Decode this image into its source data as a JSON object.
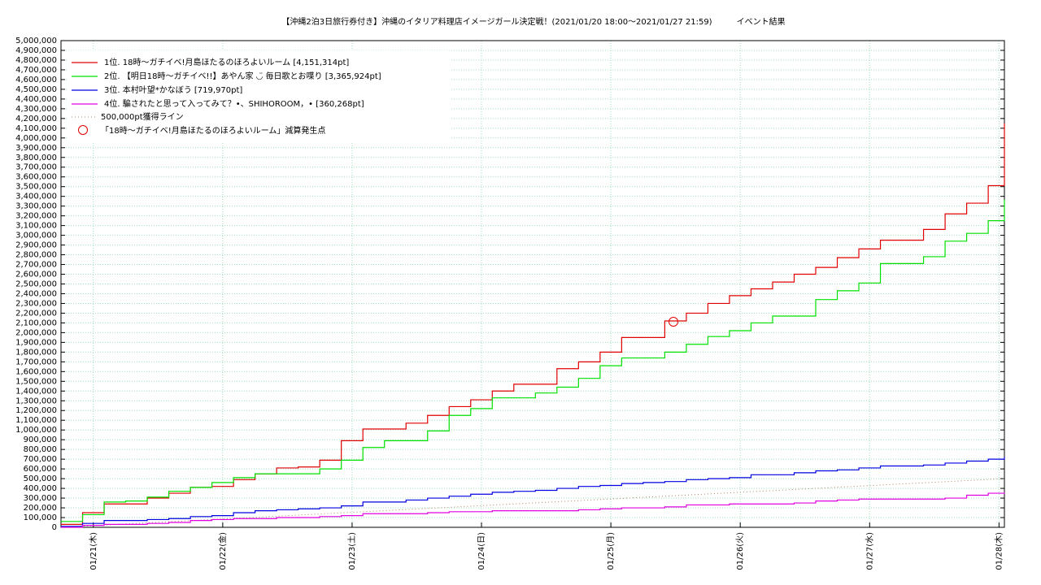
{
  "chart_data": {
    "type": "step",
    "title": "【沖縄2泊3日旅行券付き】沖縄のイタリア料理店イメージガール決定戦！(2021/01/20 18:00〜2021/01/27 21:59)　　　イベント結果",
    "x": [
      18,
      22,
      26,
      30,
      34,
      38,
      42,
      46,
      50,
      54,
      58,
      62,
      66,
      70,
      74,
      78,
      82,
      86,
      90,
      94,
      98,
      102,
      106,
      110,
      114,
      118,
      122,
      126,
      130,
      134,
      138,
      142,
      146,
      150,
      154,
      158,
      162,
      166,
      170,
      174,
      178,
      182,
      186,
      190,
      193
    ],
    "series": [
      {
        "name": "1位. 18時〜ガチイベ!月島ほたるのほろよいルーム [4,151,314pt]",
        "color": "#e00000",
        "values": [
          30000,
          150000,
          240000,
          240000,
          300000,
          350000,
          410000,
          420000,
          490000,
          550000,
          610000,
          620000,
          690000,
          890000,
          1010000,
          1010000,
          1070000,
          1150000,
          1240000,
          1310000,
          1400000,
          1470000,
          1470000,
          1630000,
          1700000,
          1800000,
          1950000,
          1950000,
          2120000,
          2200000,
          2300000,
          2380000,
          2450000,
          2520000,
          2600000,
          2670000,
          2770000,
          2860000,
          2950000,
          2950000,
          3060000,
          3220000,
          3330000,
          3510000,
          4151314
        ]
      },
      {
        "name": "2位. 【明日18時〜ガチイベ!!】あやん家 ◡̈ 毎日歌とお喋り [3,365,924pt]",
        "color": "#00e000",
        "values": [
          60000,
          130000,
          260000,
          270000,
          310000,
          370000,
          410000,
          460000,
          510000,
          550000,
          550000,
          550000,
          600000,
          690000,
          820000,
          890000,
          890000,
          990000,
          1150000,
          1220000,
          1330000,
          1330000,
          1380000,
          1440000,
          1530000,
          1660000,
          1740000,
          1740000,
          1800000,
          1880000,
          1960000,
          2020000,
          2100000,
          2170000,
          2170000,
          2340000,
          2430000,
          2510000,
          2710000,
          2710000,
          2780000,
          2940000,
          3020000,
          3150000,
          3365924
        ]
      },
      {
        "name": "3位. 本村叶望*かなぼう [719,970pt]",
        "color": "#0000e0",
        "values": [
          10000,
          40000,
          70000,
          70000,
          80000,
          90000,
          110000,
          120000,
          150000,
          170000,
          180000,
          190000,
          200000,
          220000,
          260000,
          260000,
          280000,
          300000,
          320000,
          340000,
          360000,
          370000,
          380000,
          400000,
          420000,
          430000,
          450000,
          460000,
          470000,
          490000,
          500000,
          510000,
          540000,
          540000,
          560000,
          580000,
          590000,
          610000,
          630000,
          630000,
          640000,
          660000,
          680000,
          700000,
          719970
        ]
      },
      {
        "name": "4位. 騙されたと思って入ってみて？•、SHIHOROOM，• [360,268pt]",
        "color": "#e000e0",
        "values": [
          0,
          20000,
          30000,
          30000,
          40000,
          50000,
          70000,
          80000,
          90000,
          90000,
          100000,
          100000,
          110000,
          120000,
          140000,
          140000,
          140000,
          150000,
          160000,
          160000,
          170000,
          170000,
          170000,
          170000,
          180000,
          190000,
          200000,
          200000,
          210000,
          230000,
          230000,
          240000,
          240000,
          240000,
          250000,
          270000,
          280000,
          290000,
          290000,
          290000,
          290000,
          300000,
          330000,
          350000,
          360268
        ]
      }
    ],
    "reference_line": {
      "name": "500,000pt獲得ライン",
      "color": "#b08060",
      "x": [
        18,
        193
      ],
      "values": [
        0,
        500000
      ]
    },
    "markers": {
      "name": "「18時〜ガチイベ!月島ほたるのほろよいルーム」減算発生点",
      "color": "#e00000",
      "x": [
        131.6
      ],
      "values": [
        2112000
      ]
    },
    "xlim": [
      18,
      193
    ],
    "xticks": [
      {
        "value": 24,
        "label": "01/21(木)"
      },
      {
        "value": 48,
        "label": "01/22(金)"
      },
      {
        "value": 72,
        "label": "01/23(土)"
      },
      {
        "value": 96,
        "label": "01/24(日)"
      },
      {
        "value": 120,
        "label": "01/25(月)"
      },
      {
        "value": 144,
        "label": "01/26(火)"
      },
      {
        "value": 168,
        "label": "01/27(水)"
      },
      {
        "value": 192,
        "label": "01/28(木)"
      }
    ],
    "ylim": [
      0,
      5000000
    ],
    "yticks": [
      0,
      {
        "value": 100000,
        "label": "100,000"
      },
      {
        "value": 200000,
        "label": "200,000"
      },
      {
        "value": 300000,
        "label": "300,000"
      },
      {
        "value": 400000,
        "label": "400,000"
      },
      {
        "value": 500000,
        "label": "500,000"
      },
      {
        "value": 600000,
        "label": "600,000"
      },
      {
        "value": 700000,
        "label": "700,000"
      },
      {
        "value": 800000,
        "label": "800,000"
      },
      {
        "value": 900000,
        "label": "900,000"
      },
      {
        "value": 1000000,
        "label": "1,000,000"
      },
      {
        "value": 1100000,
        "label": "1,100,000"
      },
      {
        "value": 1200000,
        "label": "1,200,000"
      },
      {
        "value": 1300000,
        "label": "1,300,000"
      },
      {
        "value": 1400000,
        "label": "1,400,000"
      },
      {
        "value": 1500000,
        "label": "1,500,000"
      },
      {
        "value": 1600000,
        "label": "1,600,000"
      },
      {
        "value": 1700000,
        "label": "1,700,000"
      },
      {
        "value": 1800000,
        "label": "1,800,000"
      },
      {
        "value": 1900000,
        "label": "1,900,000"
      },
      {
        "value": 2000000,
        "label": "2,000,000"
      },
      {
        "value": 2100000,
        "label": "2,100,000"
      },
      {
        "value": 2200000,
        "label": "2,200,000"
      },
      {
        "value": 2300000,
        "label": "2,300,000"
      },
      {
        "value": 2400000,
        "label": "2,400,000"
      },
      {
        "value": 2500000,
        "label": "2,500,000"
      },
      {
        "value": 2600000,
        "label": "2,600,000"
      },
      {
        "value": 2700000,
        "label": "2,700,000"
      },
      {
        "value": 2800000,
        "label": "2,800,000"
      },
      {
        "value": 2900000,
        "label": "2,900,000"
      },
      {
        "value": 3000000,
        "label": "3,000,000"
      },
      {
        "value": 3100000,
        "label": "3,100,000"
      },
      {
        "value": 3200000,
        "label": "3,200,000"
      },
      {
        "value": 3300000,
        "label": "3,300,000"
      },
      {
        "value": 3400000,
        "label": "3,400,000"
      },
      {
        "value": 3500000,
        "label": "3,500,000"
      },
      {
        "value": 3600000,
        "label": "3,600,000"
      },
      {
        "value": 3700000,
        "label": "3,700,000"
      },
      {
        "value": 3800000,
        "label": "3,800,000"
      },
      {
        "value": 3900000,
        "label": "3,900,000"
      },
      {
        "value": 4000000,
        "label": "4,000,000"
      },
      {
        "value": 4100000,
        "label": "4,100,000"
      },
      {
        "value": 4200000,
        "label": "4,200,000"
      },
      {
        "value": 4300000,
        "label": "4,300,000"
      },
      {
        "value": 4400000,
        "label": "4,400,000"
      },
      {
        "value": 4500000,
        "label": "4,500,000"
      },
      {
        "value": 4600000,
        "label": "4,600,000"
      },
      {
        "value": 4700000,
        "label": "4,700,000"
      },
      {
        "value": 4800000,
        "label": "4,800,000"
      },
      {
        "value": 4900000,
        "label": "4,900,000"
      },
      {
        "value": 5000000,
        "label": "5,000,000"
      }
    ],
    "grid": true,
    "grid_color": "#a0e0c0",
    "legend": "upper left"
  }
}
